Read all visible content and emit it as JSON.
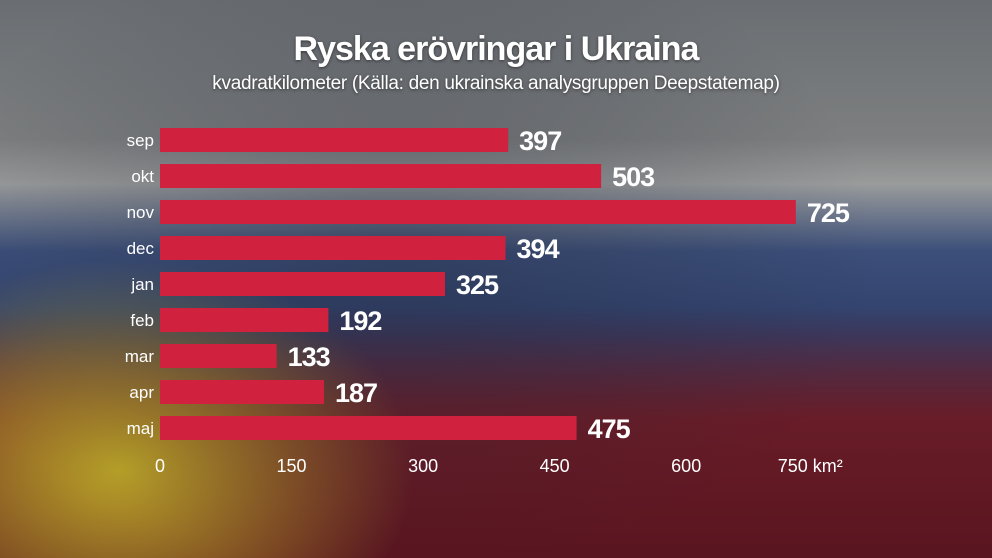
{
  "chart_data": {
    "type": "bar",
    "orientation": "horizontal",
    "title": "Ryska erövringar i Ukraina",
    "subtitle": "kvadratkilometer (Källa: den ukrainska analysgruppen Deepstatemap)",
    "categories": [
      "sep",
      "okt",
      "nov",
      "dec",
      "jan",
      "feb",
      "mar",
      "apr",
      "maj"
    ],
    "values": [
      397,
      503,
      725,
      394,
      325,
      192,
      133,
      187,
      475
    ],
    "xlim": [
      0,
      750
    ],
    "xticks": [
      0,
      150,
      300,
      450,
      600,
      750
    ],
    "xtick_labels": [
      "0",
      "150",
      "300",
      "450",
      "600",
      "750 km²"
    ],
    "grid": false,
    "bar_color": "#d0213f"
  }
}
